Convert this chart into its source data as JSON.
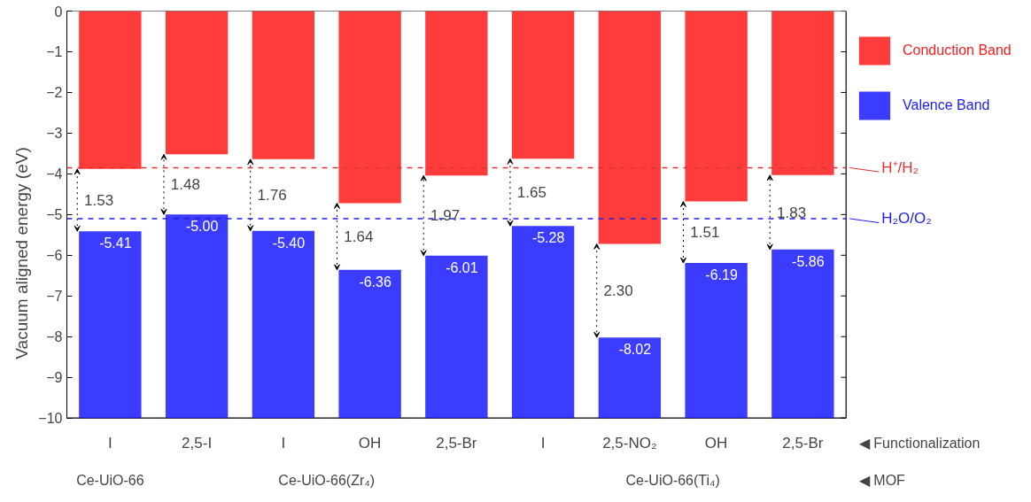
{
  "chart_data": {
    "type": "bar",
    "ylabel": "Vacuum aligned energy (eV)",
    "categories": [
      "I",
      "2,5-I",
      "I",
      "OH",
      "2,5-Br",
      "I",
      "2,5-NO₂",
      "OH",
      "2,5-Br"
    ],
    "series": [
      {
        "name": "Conduction Band",
        "color": "#ff1a1a",
        "base": [
          -3.88,
          -3.52,
          -3.64,
          -4.72,
          -4.04,
          -3.63,
          -5.72,
          -4.68,
          -4.03
        ],
        "values": [
          3.88,
          3.52,
          3.64,
          4.72,
          4.04,
          3.63,
          5.72,
          4.68,
          4.03
        ]
      },
      {
        "name": "Valence Band",
        "color": "#1a1aff",
        "base": [
          -10,
          -10,
          -10,
          -10,
          -10,
          -10,
          -10,
          -10,
          -10
        ],
        "values": [
          4.59,
          5.0,
          4.6,
          3.64,
          3.99,
          4.72,
          1.98,
          3.81,
          4.14
        ],
        "value_labels": [
          "-5.41",
          "-5.00",
          "-5.40",
          "-6.36",
          "-6.01",
          "-5.28",
          "-8.02",
          "-6.19",
          "-5.86"
        ]
      }
    ],
    "ylim": [
      -10,
      0
    ],
    "yticks": [
      -10,
      -9,
      -8,
      -7,
      -6,
      -5,
      -4,
      -3,
      -2,
      -1,
      0
    ],
    "ref_lines": [
      {
        "axis": "y",
        "value": -3.85,
        "label": "H⁺/H₂",
        "color": "#e03030",
        "line_style": "dashed"
      },
      {
        "axis": "y",
        "value": -5.1,
        "label": "H₂O/O₂",
        "color": "#2020e0",
        "line_style": "dashed"
      }
    ],
    "annotations": [
      "1.53",
      "1.48",
      "1.76",
      "1.64",
      "1.97",
      "1.65",
      "2.30",
      "1.51",
      "1.83",
      "◀ Functionalization",
      "◀ MOF",
      "Ce-UiO-66",
      "Ce-UiO-66(Zr₄)",
      "Ce-UiO-66(Ti₄)"
    ],
    "legend": "right",
    "grid": false
  }
}
